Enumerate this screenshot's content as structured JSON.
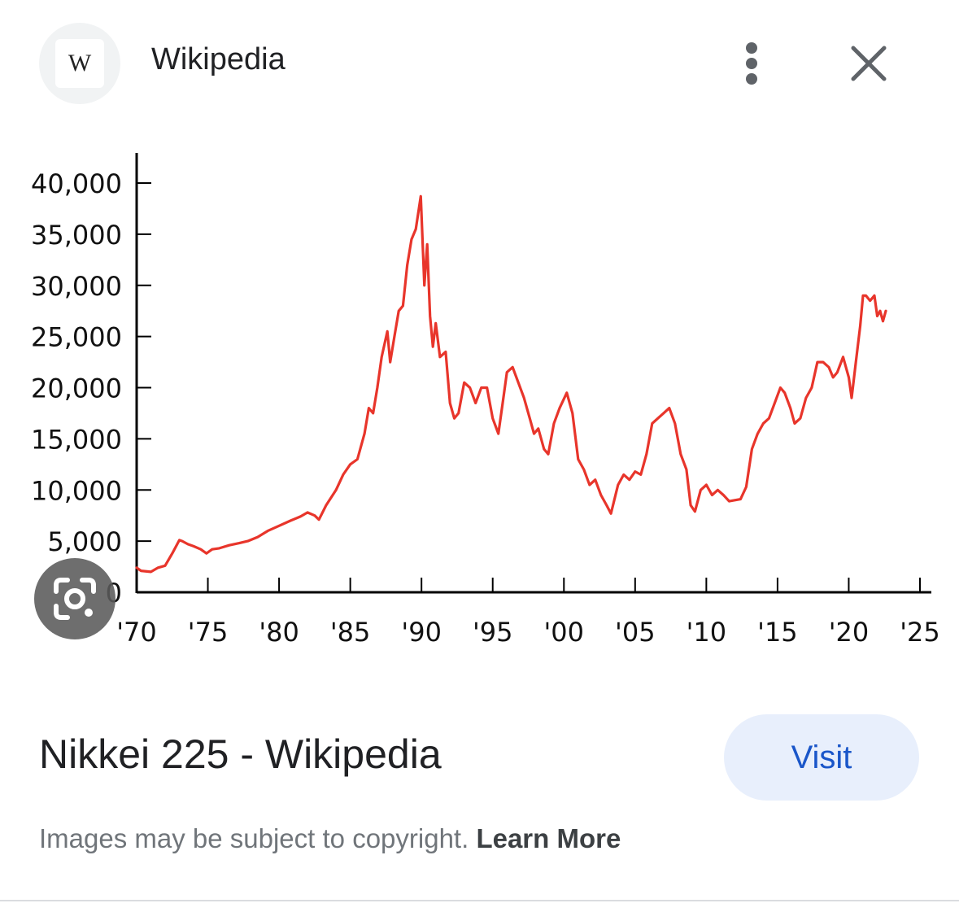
{
  "header": {
    "site_icon_letter": "W",
    "site_name": "Wikipedia",
    "menu_icon": "more-vert-icon",
    "close_icon": "close-icon"
  },
  "lens": {
    "icon": "google-lens-icon"
  },
  "result": {
    "title": "Nikkei 225 - Wikipedia",
    "visit_label": "Visit"
  },
  "footer": {
    "copyright_text": "Images may be subject to copyright.",
    "learn_more_label": "Learn More"
  },
  "colors": {
    "line": "#e8352b",
    "visit_bg": "#e8effc",
    "visit_text": "#1a56c9"
  },
  "chart_data": {
    "type": "line",
    "title": "",
    "xlabel": "",
    "ylabel": "",
    "xlim": [
      1970,
      2025
    ],
    "ylim": [
      0,
      40000
    ],
    "x_ticks": [
      1970,
      1975,
      1980,
      1985,
      1990,
      1995,
      2000,
      2005,
      2010,
      2015,
      2020,
      2025
    ],
    "x_tick_labels": [
      "'70",
      "'75",
      "'80",
      "'85",
      "'90",
      "'95",
      "'00",
      "'05",
      "'10",
      "'15",
      "'20",
      "'25"
    ],
    "y_ticks": [
      0,
      5000,
      10000,
      15000,
      20000,
      25000,
      30000,
      35000,
      40000
    ],
    "y_tick_labels": [
      "0",
      "5,000",
      "10,000",
      "15,000",
      "20,000",
      "25,000",
      "30,000",
      "35,000",
      "40,000"
    ],
    "grid": false,
    "series": [
      {
        "x": [
          1970.0,
          1970.3,
          1971.0,
          1971.5,
          1972.0,
          1972.5,
          1973.0,
          1973.2,
          1973.6,
          1974.0,
          1974.5,
          1974.9,
          1975.3,
          1975.8,
          1976.5,
          1977.2,
          1977.8,
          1978.5,
          1979.2,
          1980.0,
          1980.8,
          1981.5,
          1982.0,
          1982.5,
          1982.8,
          1983.3,
          1984.0,
          1984.5,
          1985.0,
          1985.5,
          1986.0,
          1986.3,
          1986.6,
          1986.9,
          1987.2,
          1987.6,
          1987.8,
          1988.1,
          1988.4,
          1988.7,
          1989.0,
          1989.3,
          1989.6,
          1989.95,
          1990.2,
          1990.4,
          1990.6,
          1990.8,
          1991.0,
          1991.3,
          1991.7,
          1992.0,
          1992.3,
          1992.6,
          1993.0,
          1993.4,
          1993.8,
          1994.2,
          1994.6,
          1995.0,
          1995.4,
          1995.7,
          1996.0,
          1996.4,
          1996.8,
          1997.2,
          1997.6,
          1997.9,
          1998.2,
          1998.6,
          1998.9,
          1999.3,
          1999.7,
          2000.2,
          2000.6,
          2001.0,
          2001.4,
          2001.8,
          2002.2,
          2002.6,
          2003.0,
          2003.3,
          2003.8,
          2004.2,
          2004.6,
          2005.0,
          2005.4,
          2005.8,
          2006.2,
          2006.6,
          2007.0,
          2007.4,
          2007.8,
          2008.2,
          2008.6,
          2008.9,
          2009.2,
          2009.6,
          2010.0,
          2010.4,
          2010.8,
          2011.2,
          2011.6,
          2012.0,
          2012.4,
          2012.8,
          2013.2,
          2013.6,
          2014.0,
          2014.4,
          2014.8,
          2015.2,
          2015.5,
          2015.9,
          2016.2,
          2016.6,
          2017.0,
          2017.4,
          2017.8,
          2018.2,
          2018.6,
          2018.9,
          2019.2,
          2019.6,
          2020.0,
          2020.2,
          2020.5,
          2020.8,
          2021.0,
          2021.2,
          2021.5,
          2021.8,
          2022.0,
          2022.2,
          2022.4,
          2022.6
        ],
        "y": [
          2400,
          2100,
          2000,
          2400,
          2600,
          3800,
          5100,
          5000,
          4700,
          4500,
          4200,
          3800,
          4200,
          4300,
          4600,
          4800,
          5000,
          5400,
          6000,
          6500,
          7000,
          7400,
          7800,
          7500,
          7100,
          8500,
          10000,
          11500,
          12500,
          13000,
          15500,
          18000,
          17500,
          20000,
          23000,
          25500,
          22500,
          25000,
          27500,
          28000,
          32000,
          34500,
          35500,
          38700,
          30000,
          34000,
          27000,
          24000,
          26300,
          23000,
          23500,
          18500,
          17000,
          17500,
          20500,
          20000,
          18500,
          20000,
          20000,
          17000,
          15500,
          18500,
          21500,
          22000,
          20500,
          19000,
          17000,
          15500,
          16000,
          14000,
          13500,
          16500,
          18000,
          19500,
          17500,
          13000,
          12000,
          10500,
          11000,
          9500,
          8500,
          7700,
          10500,
          11500,
          11000,
          11800,
          11500,
          13500,
          16500,
          17000,
          17500,
          18000,
          16500,
          13500,
          12000,
          8500,
          7900,
          10000,
          10500,
          9500,
          10000,
          9500,
          8900,
          9000,
          9100,
          10300,
          14000,
          15500,
          16500,
          17000,
          18500,
          20000,
          19500,
          18000,
          16500,
          17000,
          19000,
          20000,
          22500,
          22500,
          22000,
          21000,
          21500,
          23000,
          21000,
          19000,
          22500,
          26000,
          29000,
          29000,
          28500,
          29000,
          27000,
          27500,
          26500,
          27500
        ]
      }
    ]
  }
}
